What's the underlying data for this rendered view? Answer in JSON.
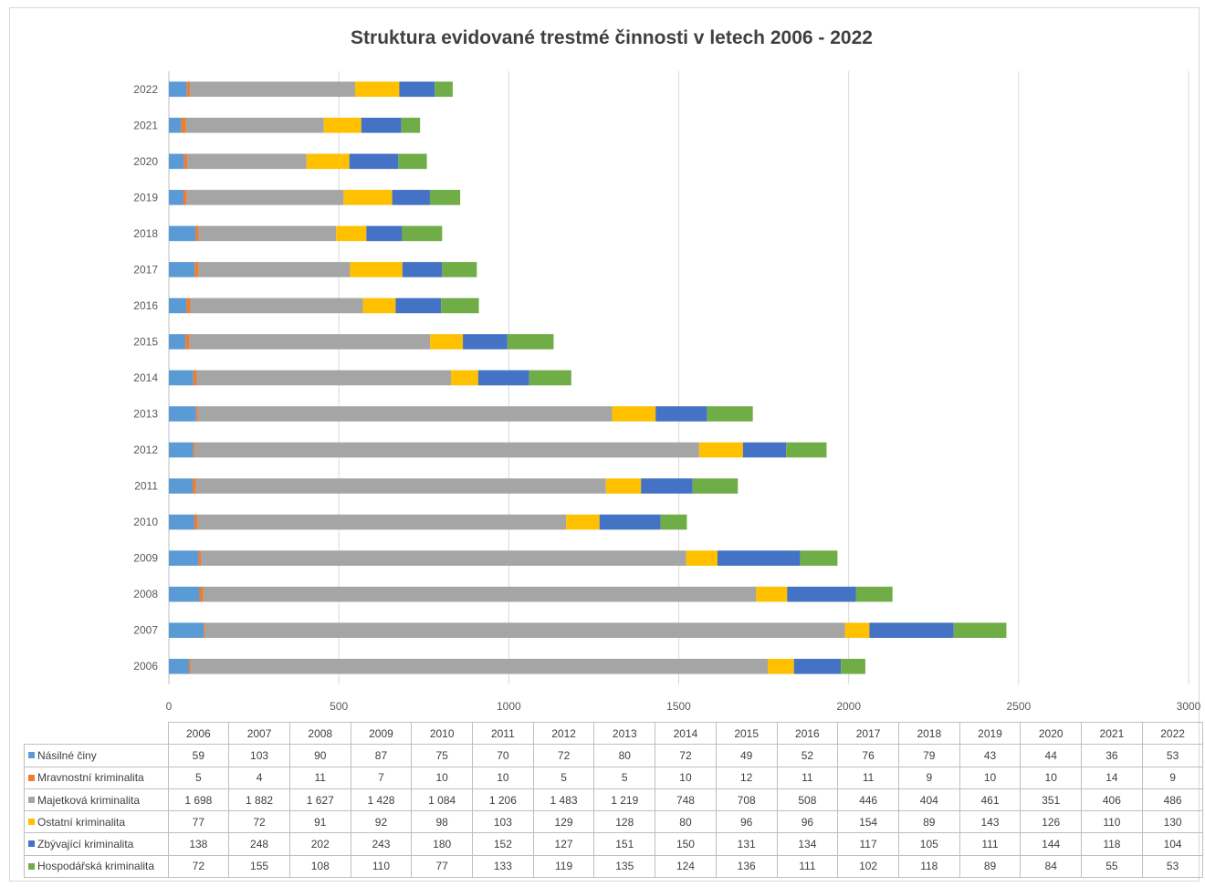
{
  "chart_data": {
    "type": "bar",
    "orientation": "horizontal",
    "stacked": true,
    "title": "Struktura evidované trestmé činnosti v letech 2006 - 2022",
    "categories": [
      "2006",
      "2007",
      "2008",
      "2009",
      "2010",
      "2011",
      "2012",
      "2013",
      "2014",
      "2015",
      "2016",
      "2017",
      "2018",
      "2019",
      "2020",
      "2021",
      "2022"
    ],
    "xlim": [
      0,
      3000
    ],
    "xticks": [
      "0",
      "500",
      "1000",
      "1500",
      "2000",
      "2500",
      "3000"
    ],
    "grid": true,
    "legend": "table-bottom",
    "series": [
      {
        "name": "Násilné činy",
        "color": "#5b9bd5",
        "values": [
          59,
          103,
          90,
          87,
          75,
          70,
          72,
          80,
          72,
          49,
          52,
          76,
          79,
          43,
          44,
          36,
          53
        ],
        "labels": [
          "59",
          "103",
          "90",
          "87",
          "75",
          "70",
          "72",
          "80",
          "72",
          "49",
          "52",
          "76",
          "79",
          "43",
          "44",
          "36",
          "53"
        ]
      },
      {
        "name": "Mravnostní kriminalita",
        "color": "#ed7d31",
        "values": [
          5,
          4,
          11,
          7,
          10,
          10,
          5,
          5,
          10,
          12,
          11,
          11,
          9,
          10,
          10,
          14,
          9
        ],
        "labels": [
          "5",
          "4",
          "11",
          "7",
          "10",
          "10",
          "5",
          "5",
          "10",
          "12",
          "11",
          "11",
          "9",
          "10",
          "10",
          "14",
          "9"
        ]
      },
      {
        "name": "Majetková kriminalita",
        "color": "#a5a5a5",
        "values": [
          1698,
          1882,
          1627,
          1428,
          1084,
          1206,
          1483,
          1219,
          748,
          708,
          508,
          446,
          404,
          461,
          351,
          406,
          486
        ],
        "labels": [
          "1 698",
          "1 882",
          "1 627",
          "1 428",
          "1 084",
          "1 206",
          "1 483",
          "1 219",
          "748",
          "708",
          "508",
          "446",
          "404",
          "461",
          "351",
          "406",
          "486"
        ]
      },
      {
        "name": "Ostatní kriminalita",
        "color": "#ffc000",
        "values": [
          77,
          72,
          91,
          92,
          98,
          103,
          129,
          128,
          80,
          96,
          96,
          154,
          89,
          143,
          126,
          110,
          130
        ],
        "labels": [
          "77",
          "72",
          "91",
          "92",
          "98",
          "103",
          "129",
          "128",
          "80",
          "96",
          "96",
          "154",
          "89",
          "143",
          "126",
          "110",
          "130"
        ]
      },
      {
        "name": "Zbývající kriminalita",
        "color": "#4472c4",
        "values": [
          138,
          248,
          202,
          243,
          180,
          152,
          127,
          151,
          150,
          131,
          134,
          117,
          105,
          111,
          144,
          118,
          104
        ],
        "labels": [
          "138",
          "248",
          "202",
          "243",
          "180",
          "152",
          "127",
          "151",
          "150",
          "131",
          "134",
          "117",
          "105",
          "111",
          "144",
          "118",
          "104"
        ]
      },
      {
        "name": "Hospodářská kriminalita",
        "color": "#70ad47",
        "values": [
          72,
          155,
          108,
          110,
          77,
          133,
          119,
          135,
          124,
          136,
          111,
          102,
          118,
          89,
          84,
          55,
          53
        ],
        "labels": [
          "72",
          "155",
          "108",
          "110",
          "77",
          "133",
          "119",
          "135",
          "124",
          "136",
          "111",
          "102",
          "118",
          "89",
          "84",
          "55",
          "53"
        ]
      }
    ]
  }
}
